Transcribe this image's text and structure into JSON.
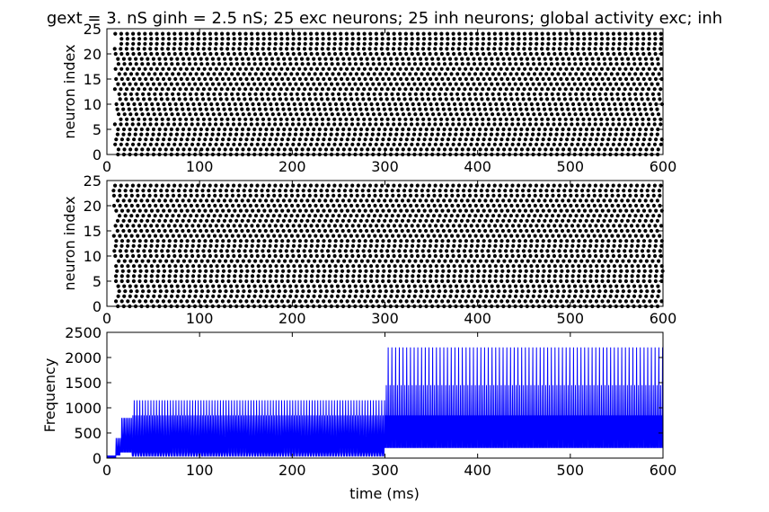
{
  "figure": {
    "title": "gext = 3. nS ginh = 2.5 nS; 25 exc neurons; 25 inh neurons; global activity exc; inh"
  },
  "chart_data": [
    {
      "type": "scatter",
      "name": "raster-exc",
      "ylabel": "neuron index",
      "xlabel": "",
      "xlim": [
        0,
        600
      ],
      "ylim": [
        0,
        25
      ],
      "xticks": [
        "0",
        "100",
        "200",
        "300",
        "400",
        "500",
        "600"
      ],
      "yticks": [
        "0",
        "5",
        "10",
        "15",
        "20",
        "25"
      ],
      "neurons": 25,
      "first_spike_ms": 8,
      "spike_period_ms": 6.4,
      "marker_color": "#000000",
      "grid": false
    },
    {
      "type": "scatter",
      "name": "raster-inh",
      "ylabel": "neuron index",
      "xlabel": "",
      "xlim": [
        0,
        600
      ],
      "ylim": [
        0,
        25
      ],
      "xticks": [
        "0",
        "100",
        "200",
        "300",
        "400",
        "500",
        "600"
      ],
      "yticks": [
        "0",
        "5",
        "10",
        "15",
        "20",
        "25"
      ],
      "neurons": 25,
      "first_spike_ms": 6,
      "spike_period_ms": 6.4,
      "marker_color": "#000000",
      "grid": false
    },
    {
      "type": "line",
      "name": "global-activity",
      "ylabel": "Frequency",
      "xlabel": "time (ms)",
      "xlim": [
        0,
        600
      ],
      "ylim": [
        0,
        2500
      ],
      "xticks": [
        "0",
        "100",
        "200",
        "300",
        "400",
        "500",
        "600"
      ],
      "yticks": [
        "0",
        "500",
        "1000",
        "1500",
        "2000",
        "2500"
      ],
      "line_color": "#0000ff",
      "grid": false,
      "phases": [
        {
          "t_start": 0,
          "t_end": 10,
          "peak": 50,
          "trough": 0
        },
        {
          "t_start": 10,
          "t_end": 27,
          "peak": 800,
          "trough": 0
        },
        {
          "t_start": 27,
          "t_end": 300,
          "peak": 1150,
          "secondary": 850,
          "trough": 0
        },
        {
          "t_start": 300,
          "t_end": 600,
          "peak": 2200,
          "secondary": 1450,
          "tertiary": 850,
          "trough": 0
        }
      ]
    }
  ]
}
